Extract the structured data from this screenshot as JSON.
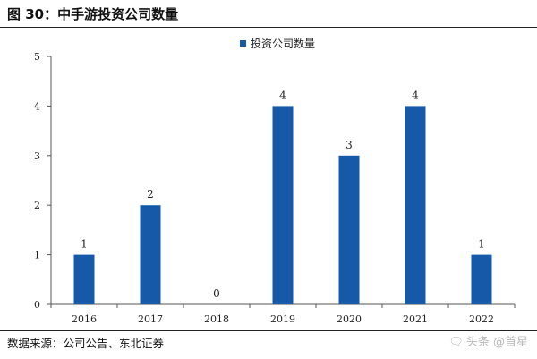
{
  "figure": {
    "title": "图 30：中手游投资公司数量",
    "source": "数据来源：公司公告、东北证券",
    "watermark": "头条 @首星",
    "watermark_icon": "speech-bubble-icon"
  },
  "colors": {
    "bar": "#1559a8",
    "axis": "#555555",
    "text": "#222222"
  },
  "chart_data": {
    "type": "bar",
    "categories": [
      "2016",
      "2017",
      "2018",
      "2019",
      "2020",
      "2021",
      "2022"
    ],
    "series": [
      {
        "name": "投资公司数量",
        "values": [
          1,
          2,
          0,
          4,
          3,
          4,
          1
        ]
      }
    ],
    "data_labels": [
      "1",
      "2",
      "0",
      "4",
      "3",
      "4",
      "1"
    ],
    "y_ticks": [
      0,
      1,
      2,
      3,
      4,
      5
    ],
    "ylim": [
      0,
      5
    ],
    "grid": false,
    "legend": "top-center"
  }
}
